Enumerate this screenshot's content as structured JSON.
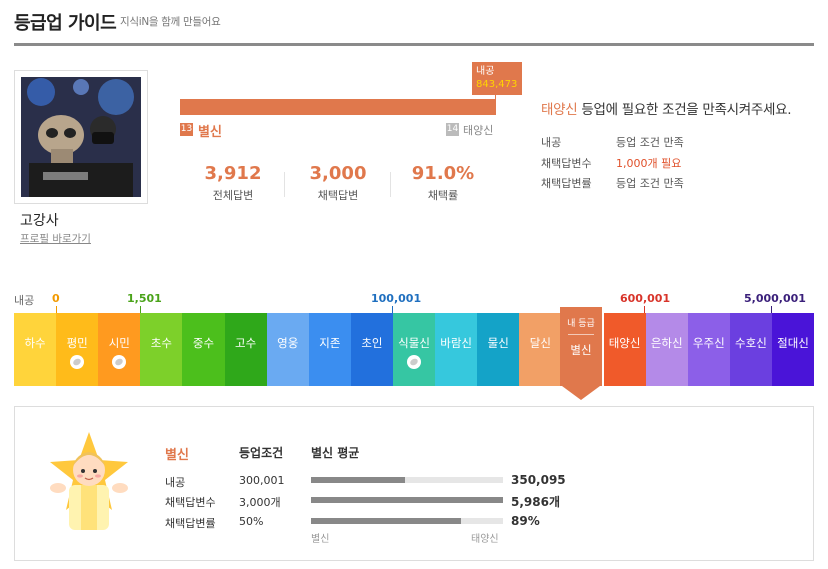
{
  "header": {
    "title": "등급업 가이드",
    "subtitle": "지식iN을 함께 만들어요"
  },
  "profile": {
    "username": "고강사",
    "profile_link": "프로필 바로가기"
  },
  "progress": {
    "marker_label": "내공",
    "marker_value": "843,473",
    "fill_percent": 100,
    "current_grade_number": "13",
    "current_grade_name": "별신",
    "next_grade_number": "14",
    "next_grade_name": "태양신"
  },
  "stats": [
    {
      "value": "3,912",
      "label": "전체답변"
    },
    {
      "value": "3,000",
      "label": "채택답변"
    },
    {
      "value": "91.0%",
      "label": "채택률"
    }
  ],
  "requirements": {
    "title_grade": "태양신",
    "title_rest": " 등업에 필요한 조건을 만족시켜주세요.",
    "rows": [
      {
        "label": "내공",
        "value": "등업 조건 만족"
      },
      {
        "label": "채택답변수",
        "value": "1,000개 필요"
      },
      {
        "label": "채택답변률",
        "value": "등업 조건 만족"
      }
    ]
  },
  "scale": {
    "label": "내공",
    "thresholds": [
      {
        "value": "0",
        "color": "#f29a00"
      },
      {
        "value": "1,501",
        "color": "#4aa31a"
      },
      {
        "value": "100,001",
        "color": "#1f6fbf"
      },
      {
        "value": "600,001",
        "color": "#d8342a"
      },
      {
        "value": "5,000,001",
        "color": "#3a1f7a"
      }
    ]
  },
  "grades": [
    {
      "name": "하수",
      "color": "#ffd43b",
      "badge": false
    },
    {
      "name": "평민",
      "color": "#ffbb1a",
      "badge": true
    },
    {
      "name": "시민",
      "color": "#ff9a1f",
      "badge": true
    },
    {
      "name": "초수",
      "color": "#7dd02a",
      "badge": false
    },
    {
      "name": "중수",
      "color": "#4cbf1c",
      "badge": false
    },
    {
      "name": "고수",
      "color": "#2fa81a",
      "badge": false
    },
    {
      "name": "영웅",
      "color": "#6aaaf2",
      "badge": false
    },
    {
      "name": "지존",
      "color": "#3b8ef0",
      "badge": false
    },
    {
      "name": "초인",
      "color": "#2270dd",
      "badge": false
    },
    {
      "name": "식물신",
      "color": "#36c6a3",
      "badge": true
    },
    {
      "name": "바람신",
      "color": "#36c8dd",
      "badge": false
    },
    {
      "name": "물신",
      "color": "#14a3c8",
      "badge": false
    },
    {
      "name": "달신",
      "color": "#f2a066",
      "badge": false
    },
    {
      "name": "별신",
      "color": "#e0784c",
      "badge": false,
      "current": true
    },
    {
      "name": "태양신",
      "color": "#f05a2a",
      "badge": false
    },
    {
      "name": "은하신",
      "color": "#b48ae8",
      "badge": false
    },
    {
      "name": "우주신",
      "color": "#8c5fe8",
      "badge": false
    },
    {
      "name": "수호신",
      "color": "#6b3fe0",
      "badge": false
    },
    {
      "name": "절대신",
      "color": "#4a14d8",
      "badge": false
    }
  ],
  "current_tab": {
    "top": "내 등급",
    "name": "별신"
  },
  "detail": {
    "grade_name": "별신",
    "col_condition": "등업조건",
    "col_average": "별신 평균",
    "rows": [
      {
        "label": "내공",
        "condition": "300,001",
        "average": "350,095",
        "fill_ratio": 0.49
      },
      {
        "label": "채택답변수",
        "condition": "3,000개",
        "average": "5,986개",
        "fill_ratio": 1.0
      },
      {
        "label": "채택답변률",
        "condition": "50%",
        "average": "89%",
        "fill_ratio": 0.78
      }
    ],
    "axis_left": "별신",
    "axis_right": "태양신"
  },
  "colors": {
    "accent": "#e0784c",
    "need": "#e0502a"
  }
}
